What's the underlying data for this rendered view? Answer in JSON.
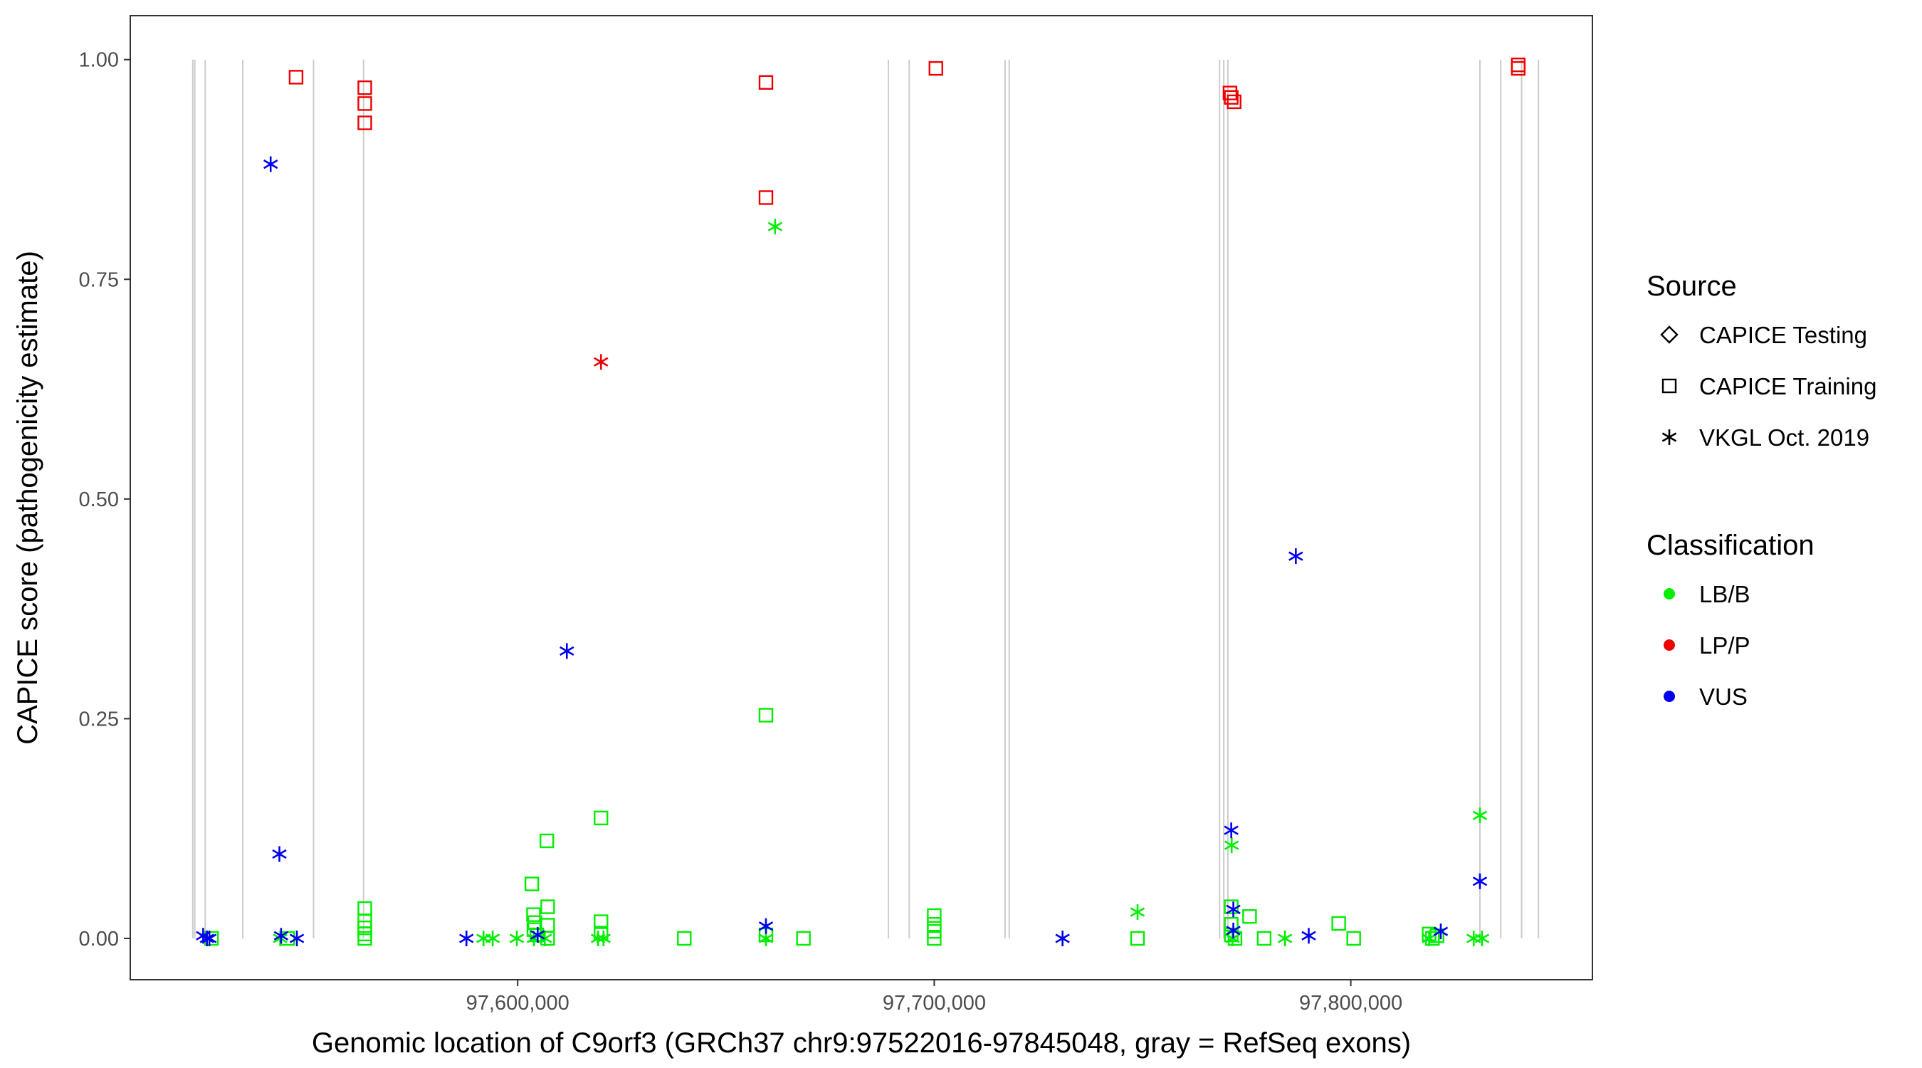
{
  "chart_data": {
    "type": "scatter",
    "title": "",
    "xlabel": "Genomic location of C9orf3 (GRCh37 chr9:97522016-97845048, gray = RefSeq exons)",
    "ylabel": "CAPICE score (pathogenicity estimate)",
    "xlim": [
      97507000,
      97858000
    ],
    "ylim": [
      -0.047,
      1.05
    ],
    "x_ticks": [
      97600000,
      97700000,
      97800000
    ],
    "x_tick_labels": [
      "97,600,000",
      "97,700,000",
      "97,800,000"
    ],
    "y_ticks": [
      0,
      0.25,
      0.5,
      0.75,
      1.0
    ],
    "y_tick_labels": [
      "0.00",
      "0.25",
      "0.50",
      "0.75",
      "1.00"
    ],
    "grid": false,
    "legend_position": "right",
    "exon_lines": [
      97522016,
      97522500,
      97525000,
      97534000,
      97551000,
      97563000,
      97689000,
      97694000,
      97717000,
      97718000,
      97768500,
      97769500,
      97770500,
      97831000,
      97836000,
      97841000,
      97845048
    ],
    "colors": {
      "LB/B": "#00ee00",
      "LP/P": "#ee0000",
      "VUS": "#0000ee",
      "exon": "#cccccc"
    },
    "legends": {
      "source": {
        "title": "Source",
        "items": [
          {
            "label": "CAPICE Testing",
            "shape": "diamond"
          },
          {
            "label": "CAPICE Training",
            "shape": "square"
          },
          {
            "label": "VKGL Oct. 2019",
            "shape": "asterisk"
          }
        ]
      },
      "classification": {
        "title": "Classification",
        "items": [
          {
            "label": "LB/B",
            "color": "#00ee00"
          },
          {
            "label": "LP/P",
            "color": "#ee0000"
          },
          {
            "label": "VUS",
            "color": "#0000ee"
          }
        ]
      }
    },
    "points": [
      {
        "x": 97546800,
        "y": 0.98,
        "source": "CAPICE Training",
        "class": "LP/P"
      },
      {
        "x": 97563300,
        "y": 0.968,
        "source": "CAPICE Training",
        "class": "LP/P"
      },
      {
        "x": 97563300,
        "y": 0.95,
        "source": "CAPICE Training",
        "class": "LP/P"
      },
      {
        "x": 97563300,
        "y": 0.928,
        "source": "CAPICE Training",
        "class": "LP/P"
      },
      {
        "x": 97659600,
        "y": 0.974,
        "source": "CAPICE Training",
        "class": "LP/P"
      },
      {
        "x": 97659600,
        "y": 0.843,
        "source": "CAPICE Training",
        "class": "LP/P"
      },
      {
        "x": 97700400,
        "y": 0.99,
        "source": "CAPICE Training",
        "class": "LP/P"
      },
      {
        "x": 97771000,
        "y": 0.962,
        "source": "CAPICE Training",
        "class": "LP/P"
      },
      {
        "x": 97771300,
        "y": 0.957,
        "source": "CAPICE Training",
        "class": "LP/P"
      },
      {
        "x": 97772000,
        "y": 0.952,
        "source": "CAPICE Training",
        "class": "LP/P"
      },
      {
        "x": 97840200,
        "y": 0.994,
        "source": "CAPICE Training",
        "class": "LP/P"
      },
      {
        "x": 97840200,
        "y": 0.99,
        "source": "CAPICE Training",
        "class": "LP/P"
      },
      {
        "x": 97620000,
        "y": 0.656,
        "source": "VKGL Oct. 2019",
        "class": "LP/P"
      },
      {
        "x": 97661800,
        "y": 0.81,
        "source": "VKGL Oct. 2019",
        "class": "LB/B"
      },
      {
        "x": 97748800,
        "y": 0.03,
        "source": "VKGL Oct. 2019",
        "class": "LB/B"
      },
      {
        "x": 97771400,
        "y": 0.106,
        "source": "VKGL Oct. 2019",
        "class": "LB/B"
      },
      {
        "x": 97784200,
        "y": 0.0,
        "source": "VKGL Oct. 2019",
        "class": "LB/B"
      },
      {
        "x": 97831000,
        "y": 0.14,
        "source": "VKGL Oct. 2019",
        "class": "LB/B"
      },
      {
        "x": 97829500,
        "y": 0.0,
        "source": "VKGL Oct. 2019",
        "class": "LB/B"
      },
      {
        "x": 97831500,
        "y": 0.0,
        "source": "VKGL Oct. 2019",
        "class": "LB/B"
      },
      {
        "x": 97818800,
        "y": 0.0,
        "source": "VKGL Oct. 2019",
        "class": "LB/B"
      },
      {
        "x": 97594000,
        "y": 0.0,
        "source": "VKGL Oct. 2019",
        "class": "LB/B"
      },
      {
        "x": 97591800,
        "y": 0.0,
        "source": "VKGL Oct. 2019",
        "class": "LB/B"
      },
      {
        "x": 97599800,
        "y": 0.0,
        "source": "VKGL Oct. 2019",
        "class": "LB/B"
      },
      {
        "x": 97603900,
        "y": 0.0,
        "source": "VKGL Oct. 2019",
        "class": "LB/B"
      },
      {
        "x": 97606500,
        "y": 0.0,
        "source": "VKGL Oct. 2019",
        "class": "LB/B"
      },
      {
        "x": 97619300,
        "y": 0.0,
        "source": "VKGL Oct. 2019",
        "class": "LB/B"
      },
      {
        "x": 97620600,
        "y": 0.0,
        "source": "VKGL Oct. 2019",
        "class": "LB/B"
      },
      {
        "x": 97543000,
        "y": 0.0,
        "source": "VKGL Oct. 2019",
        "class": "LB/B"
      },
      {
        "x": 97659600,
        "y": 0.0,
        "source": "VKGL Oct. 2019",
        "class": "LB/B"
      },
      {
        "x": 97771600,
        "y": 0.0,
        "source": "VKGL Oct. 2019",
        "class": "LB/B"
      },
      {
        "x": 97526500,
        "y": 0.0,
        "source": "CAPICE Training",
        "class": "LB/B"
      },
      {
        "x": 97544800,
        "y": 0.0,
        "source": "CAPICE Training",
        "class": "LB/B"
      },
      {
        "x": 97563300,
        "y": 0.034,
        "source": "CAPICE Training",
        "class": "LB/B"
      },
      {
        "x": 97563300,
        "y": 0.02,
        "source": "CAPICE Training",
        "class": "LB/B"
      },
      {
        "x": 97563300,
        "y": 0.012,
        "source": "CAPICE Training",
        "class": "LB/B"
      },
      {
        "x": 97563300,
        "y": 0.005,
        "source": "CAPICE Training",
        "class": "LB/B"
      },
      {
        "x": 97563300,
        "y": 0.0,
        "source": "CAPICE Training",
        "class": "LB/B"
      },
      {
        "x": 97603400,
        "y": 0.062,
        "source": "CAPICE Training",
        "class": "LB/B"
      },
      {
        "x": 97603800,
        "y": 0.027,
        "source": "CAPICE Training",
        "class": "LB/B"
      },
      {
        "x": 97604100,
        "y": 0.018,
        "source": "CAPICE Training",
        "class": "LB/B"
      },
      {
        "x": 97603900,
        "y": 0.01,
        "source": "CAPICE Training",
        "class": "LB/B"
      },
      {
        "x": 97604600,
        "y": 0.004,
        "source": "CAPICE Training",
        "class": "LB/B"
      },
      {
        "x": 97607000,
        "y": 0.111,
        "source": "CAPICE Training",
        "class": "LB/B"
      },
      {
        "x": 97607200,
        "y": 0.036,
        "source": "CAPICE Training",
        "class": "LB/B"
      },
      {
        "x": 97607200,
        "y": 0.015,
        "source": "CAPICE Training",
        "class": "LB/B"
      },
      {
        "x": 97607200,
        "y": 0.0,
        "source": "CAPICE Training",
        "class": "LB/B"
      },
      {
        "x": 97620000,
        "y": 0.137,
        "source": "CAPICE Training",
        "class": "LB/B"
      },
      {
        "x": 97620000,
        "y": 0.019,
        "source": "CAPICE Training",
        "class": "LB/B"
      },
      {
        "x": 97620000,
        "y": 0.006,
        "source": "CAPICE Training",
        "class": "LB/B"
      },
      {
        "x": 97640000,
        "y": 0.0,
        "source": "CAPICE Training",
        "class": "LB/B"
      },
      {
        "x": 97659600,
        "y": 0.254,
        "source": "CAPICE Training",
        "class": "LB/B"
      },
      {
        "x": 97659600,
        "y": 0.004,
        "source": "CAPICE Training",
        "class": "LB/B"
      },
      {
        "x": 97668600,
        "y": 0.0,
        "source": "CAPICE Training",
        "class": "LB/B"
      },
      {
        "x": 97700000,
        "y": 0.026,
        "source": "CAPICE Training",
        "class": "LB/B"
      },
      {
        "x": 97700000,
        "y": 0.016,
        "source": "CAPICE Training",
        "class": "LB/B"
      },
      {
        "x": 97700000,
        "y": 0.008,
        "source": "CAPICE Training",
        "class": "LB/B"
      },
      {
        "x": 97700000,
        "y": 0.0,
        "source": "CAPICE Training",
        "class": "LB/B"
      },
      {
        "x": 97748800,
        "y": 0.0,
        "source": "CAPICE Training",
        "class": "LB/B"
      },
      {
        "x": 97771300,
        "y": 0.036,
        "source": "CAPICE Training",
        "class": "LB/B"
      },
      {
        "x": 97771300,
        "y": 0.016,
        "source": "CAPICE Training",
        "class": "LB/B"
      },
      {
        "x": 97771300,
        "y": 0.004,
        "source": "CAPICE Training",
        "class": "LB/B"
      },
      {
        "x": 97772200,
        "y": 0.0,
        "source": "CAPICE Training",
        "class": "LB/B"
      },
      {
        "x": 97775700,
        "y": 0.025,
        "source": "CAPICE Training",
        "class": "LB/B"
      },
      {
        "x": 97779200,
        "y": 0.0,
        "source": "CAPICE Training",
        "class": "LB/B"
      },
      {
        "x": 97797100,
        "y": 0.017,
        "source": "CAPICE Training",
        "class": "LB/B"
      },
      {
        "x": 97800700,
        "y": 0.0,
        "source": "CAPICE Training",
        "class": "LB/B"
      },
      {
        "x": 97818800,
        "y": 0.005,
        "source": "CAPICE Training",
        "class": "LB/B"
      },
      {
        "x": 97819600,
        "y": 0.0,
        "source": "CAPICE Training",
        "class": "LB/B"
      },
      {
        "x": 97820700,
        "y": 0.003,
        "source": "CAPICE Training",
        "class": "LB/B"
      },
      {
        "x": 97540700,
        "y": 0.881,
        "source": "VKGL Oct. 2019",
        "class": "VUS"
      },
      {
        "x": 97542800,
        "y": 0.096,
        "source": "VKGL Oct. 2019",
        "class": "VUS"
      },
      {
        "x": 97543200,
        "y": 0.003,
        "source": "VKGL Oct. 2019",
        "class": "VUS"
      },
      {
        "x": 97547000,
        "y": 0.0,
        "source": "VKGL Oct. 2019",
        "class": "VUS"
      },
      {
        "x": 97524500,
        "y": 0.003,
        "source": "VKGL Oct. 2019",
        "class": "VUS"
      },
      {
        "x": 97526000,
        "y": 0.0,
        "source": "VKGL Oct. 2019",
        "class": "VUS"
      },
      {
        "x": 97525400,
        "y": 0.0,
        "source": "VKGL Oct. 2019",
        "class": "VUS"
      },
      {
        "x": 97587700,
        "y": 0.0,
        "source": "VKGL Oct. 2019",
        "class": "VUS"
      },
      {
        "x": 97604800,
        "y": 0.004,
        "source": "VKGL Oct. 2019",
        "class": "VUS"
      },
      {
        "x": 97611800,
        "y": 0.327,
        "source": "VKGL Oct. 2019",
        "class": "VUS"
      },
      {
        "x": 97659600,
        "y": 0.014,
        "source": "VKGL Oct. 2019",
        "class": "VUS"
      },
      {
        "x": 97730800,
        "y": 0.0,
        "source": "VKGL Oct. 2019",
        "class": "VUS"
      },
      {
        "x": 97771300,
        "y": 0.123,
        "source": "VKGL Oct. 2019",
        "class": "VUS"
      },
      {
        "x": 97771800,
        "y": 0.033,
        "source": "VKGL Oct. 2019",
        "class": "VUS"
      },
      {
        "x": 97771800,
        "y": 0.009,
        "source": "VKGL Oct. 2019",
        "class": "VUS"
      },
      {
        "x": 97786800,
        "y": 0.435,
        "source": "VKGL Oct. 2019",
        "class": "VUS"
      },
      {
        "x": 97789900,
        "y": 0.003,
        "source": "VKGL Oct. 2019",
        "class": "VUS"
      },
      {
        "x": 97821600,
        "y": 0.008,
        "source": "VKGL Oct. 2019",
        "class": "VUS"
      },
      {
        "x": 97831000,
        "y": 0.065,
        "source": "VKGL Oct. 2019",
        "class": "VUS"
      }
    ]
  }
}
